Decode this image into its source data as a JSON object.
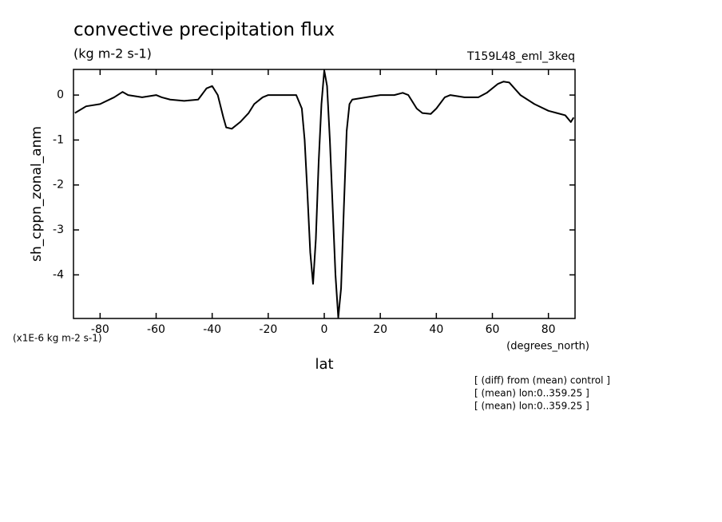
{
  "chart_data": {
    "type": "line",
    "title": "convective precipitation flux",
    "subtitle": "(kg m-2 s-1)",
    "experiment": "T159L48_eml_3keq",
    "y_label": "sh_cppn_zonal_anm",
    "y_unit": "(x1E-6 kg m-2 s-1)",
    "x_label": "lat",
    "x_unit": "(degrees_north)",
    "notes": [
      "[ (diff) from (mean) control ]",
      "[ (mean) lon:0..359.25 ]",
      "[ (mean) lon:0..359.25 ]"
    ],
    "color": "#000000",
    "x": [
      -89,
      -85,
      -80,
      -75,
      -72,
      -70,
      -65,
      -60,
      -58,
      -55,
      -50,
      -45,
      -42,
      -40,
      -38,
      -36,
      -35,
      -33,
      -30,
      -27,
      -25,
      -22,
      -20,
      -15,
      -10,
      -8,
      -7,
      -6,
      -5,
      -4,
      -3,
      -2,
      -1,
      0,
      1,
      2,
      3,
      4,
      5,
      6,
      7,
      8,
      9,
      10,
      15,
      20,
      25,
      28,
      30,
      33,
      35,
      38,
      40,
      43,
      45,
      50,
      55,
      58,
      62,
      64,
      66,
      70,
      75,
      80,
      83,
      86,
      88,
      89
    ],
    "values": [
      -0.4,
      -0.25,
      -0.2,
      -0.05,
      0.07,
      0.0,
      -0.05,
      0.0,
      -0.05,
      -0.1,
      -0.13,
      -0.1,
      0.15,
      0.2,
      0.0,
      -0.5,
      -0.72,
      -0.75,
      -0.6,
      -0.4,
      -0.2,
      -0.05,
      0.0,
      0.0,
      0.0,
      -0.3,
      -1.0,
      -2.2,
      -3.5,
      -4.2,
      -3.2,
      -1.5,
      -0.2,
      0.55,
      0.2,
      -1.0,
      -2.5,
      -4.0,
      -4.95,
      -4.3,
      -2.5,
      -0.8,
      -0.2,
      -0.1,
      -0.05,
      0.0,
      0.0,
      0.05,
      0.0,
      -0.3,
      -0.4,
      -0.42,
      -0.3,
      -0.05,
      0.0,
      -0.05,
      -0.05,
      0.05,
      0.25,
      0.3,
      0.28,
      0.0,
      -0.2,
      -0.35,
      -0.4,
      -0.45,
      -0.6,
      -0.5
    ],
    "xlim": [
      -89.5,
      89.5
    ],
    "xticks": [
      -80,
      -60,
      -40,
      -20,
      0,
      20,
      40,
      60,
      80
    ],
    "ylim": [
      -4.97,
      0.57
    ],
    "yticks": [
      -4,
      -3,
      -2,
      -1,
      0
    ]
  }
}
